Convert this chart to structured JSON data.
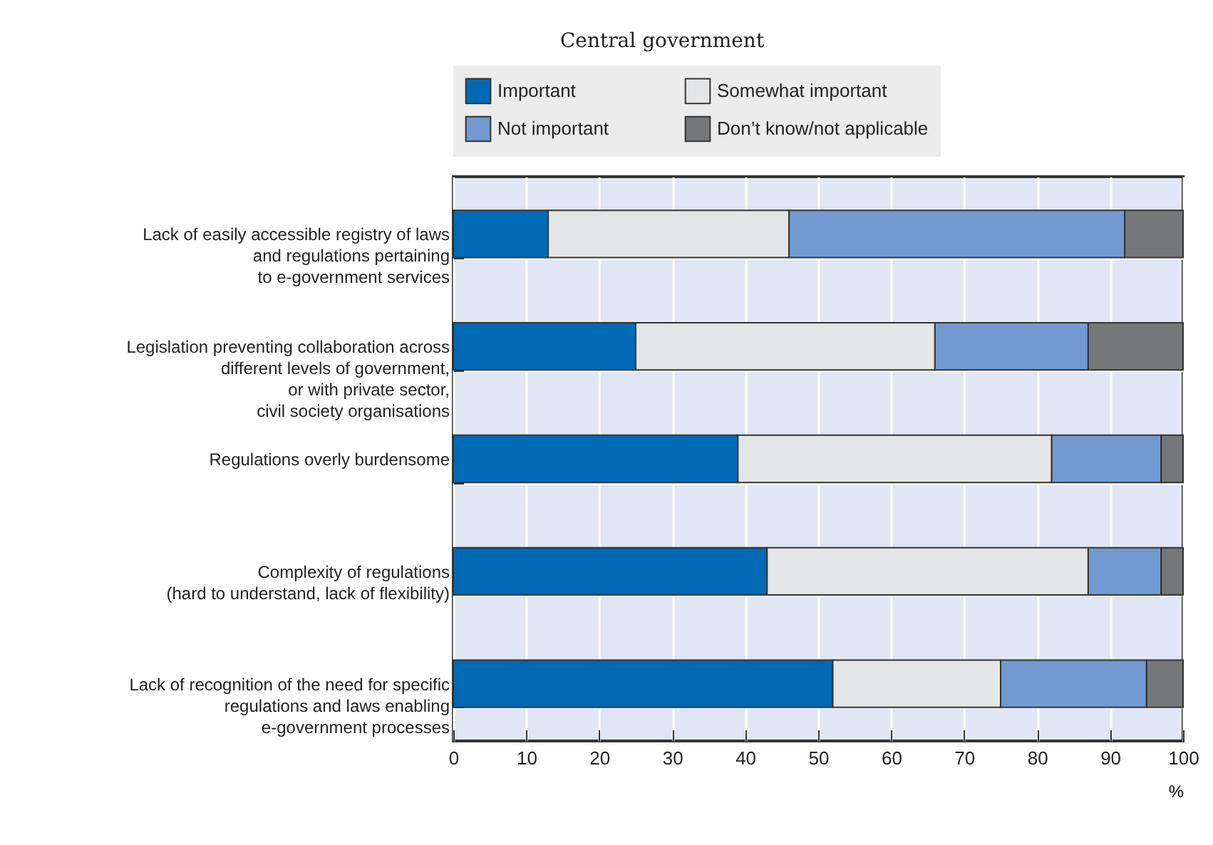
{
  "chart_data": {
    "type": "bar",
    "orientation": "horizontal",
    "stacked": true,
    "title": "Central government",
    "xlabel": "%",
    "categories": [
      "Lack of easily accessible registry of laws\nand regulations pertaining\nto e-government services",
      "Legislation preventing collaboration across\ndifferent levels of government,\nor with private sector,\ncivil society organisations",
      "Regulations overly burdensome",
      "Complexity of regulations\n(hard to understand, lack of flexibility)",
      "Lack of recognition of the need for specific\nregulations and laws enabling\ne-government processes"
    ],
    "series": [
      {
        "name": "Important",
        "color": "#006ab4",
        "values": [
          13,
          25,
          39,
          43,
          52
        ]
      },
      {
        "name": "Somewhat important",
        "color": "#e4e5e6",
        "values": [
          33,
          41,
          43,
          44,
          23
        ]
      },
      {
        "name": "Not important",
        "color": "#739ad0",
        "values": [
          46,
          21,
          15,
          10,
          20
        ]
      },
      {
        "name": "Don’t know/not applicable",
        "color": "#767779",
        "values": [
          8,
          13,
          3,
          3,
          5
        ]
      }
    ],
    "xlim": [
      0,
      100
    ],
    "xticks": [
      0,
      10,
      20,
      30,
      40,
      50,
      60,
      70,
      80,
      90,
      100
    ],
    "grid": true,
    "legend": "top"
  }
}
